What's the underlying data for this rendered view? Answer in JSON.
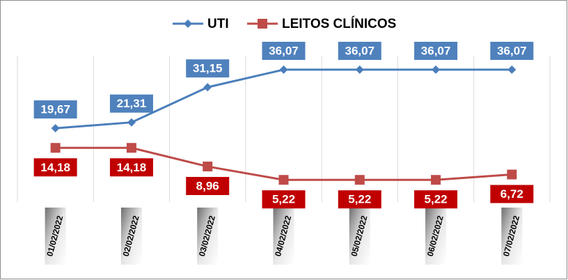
{
  "chart_data": {
    "type": "line",
    "categories": [
      "01/02/2022",
      "02/02/2022",
      "03/02/2022",
      "04/02/2022",
      "05/02/2022",
      "06/02/2022",
      "07/02/2022"
    ],
    "series": [
      {
        "name": "UTI",
        "color": "#4a7ebb",
        "marker": "diamond",
        "label_color": "#4f81bd",
        "label_side": "above",
        "values": [
          19.67,
          21.31,
          31.15,
          36.07,
          36.07,
          36.07,
          36.07
        ],
        "value_labels": [
          "19,67",
          "21,31",
          "31,15",
          "36,07",
          "36,07",
          "36,07",
          "36,07"
        ]
      },
      {
        "name": "LEITOS CLÍNICOS",
        "color": "#be4b48",
        "marker": "square",
        "label_color": "#c00000",
        "label_side": "below",
        "values": [
          14.18,
          14.18,
          8.96,
          5.22,
          5.22,
          5.22,
          6.72
        ],
        "value_labels": [
          "14,18",
          "14,18",
          "8,96",
          "5,22",
          "5,22",
          "5,22",
          "6,72"
        ]
      }
    ],
    "legend": "top",
    "grid": true
  }
}
